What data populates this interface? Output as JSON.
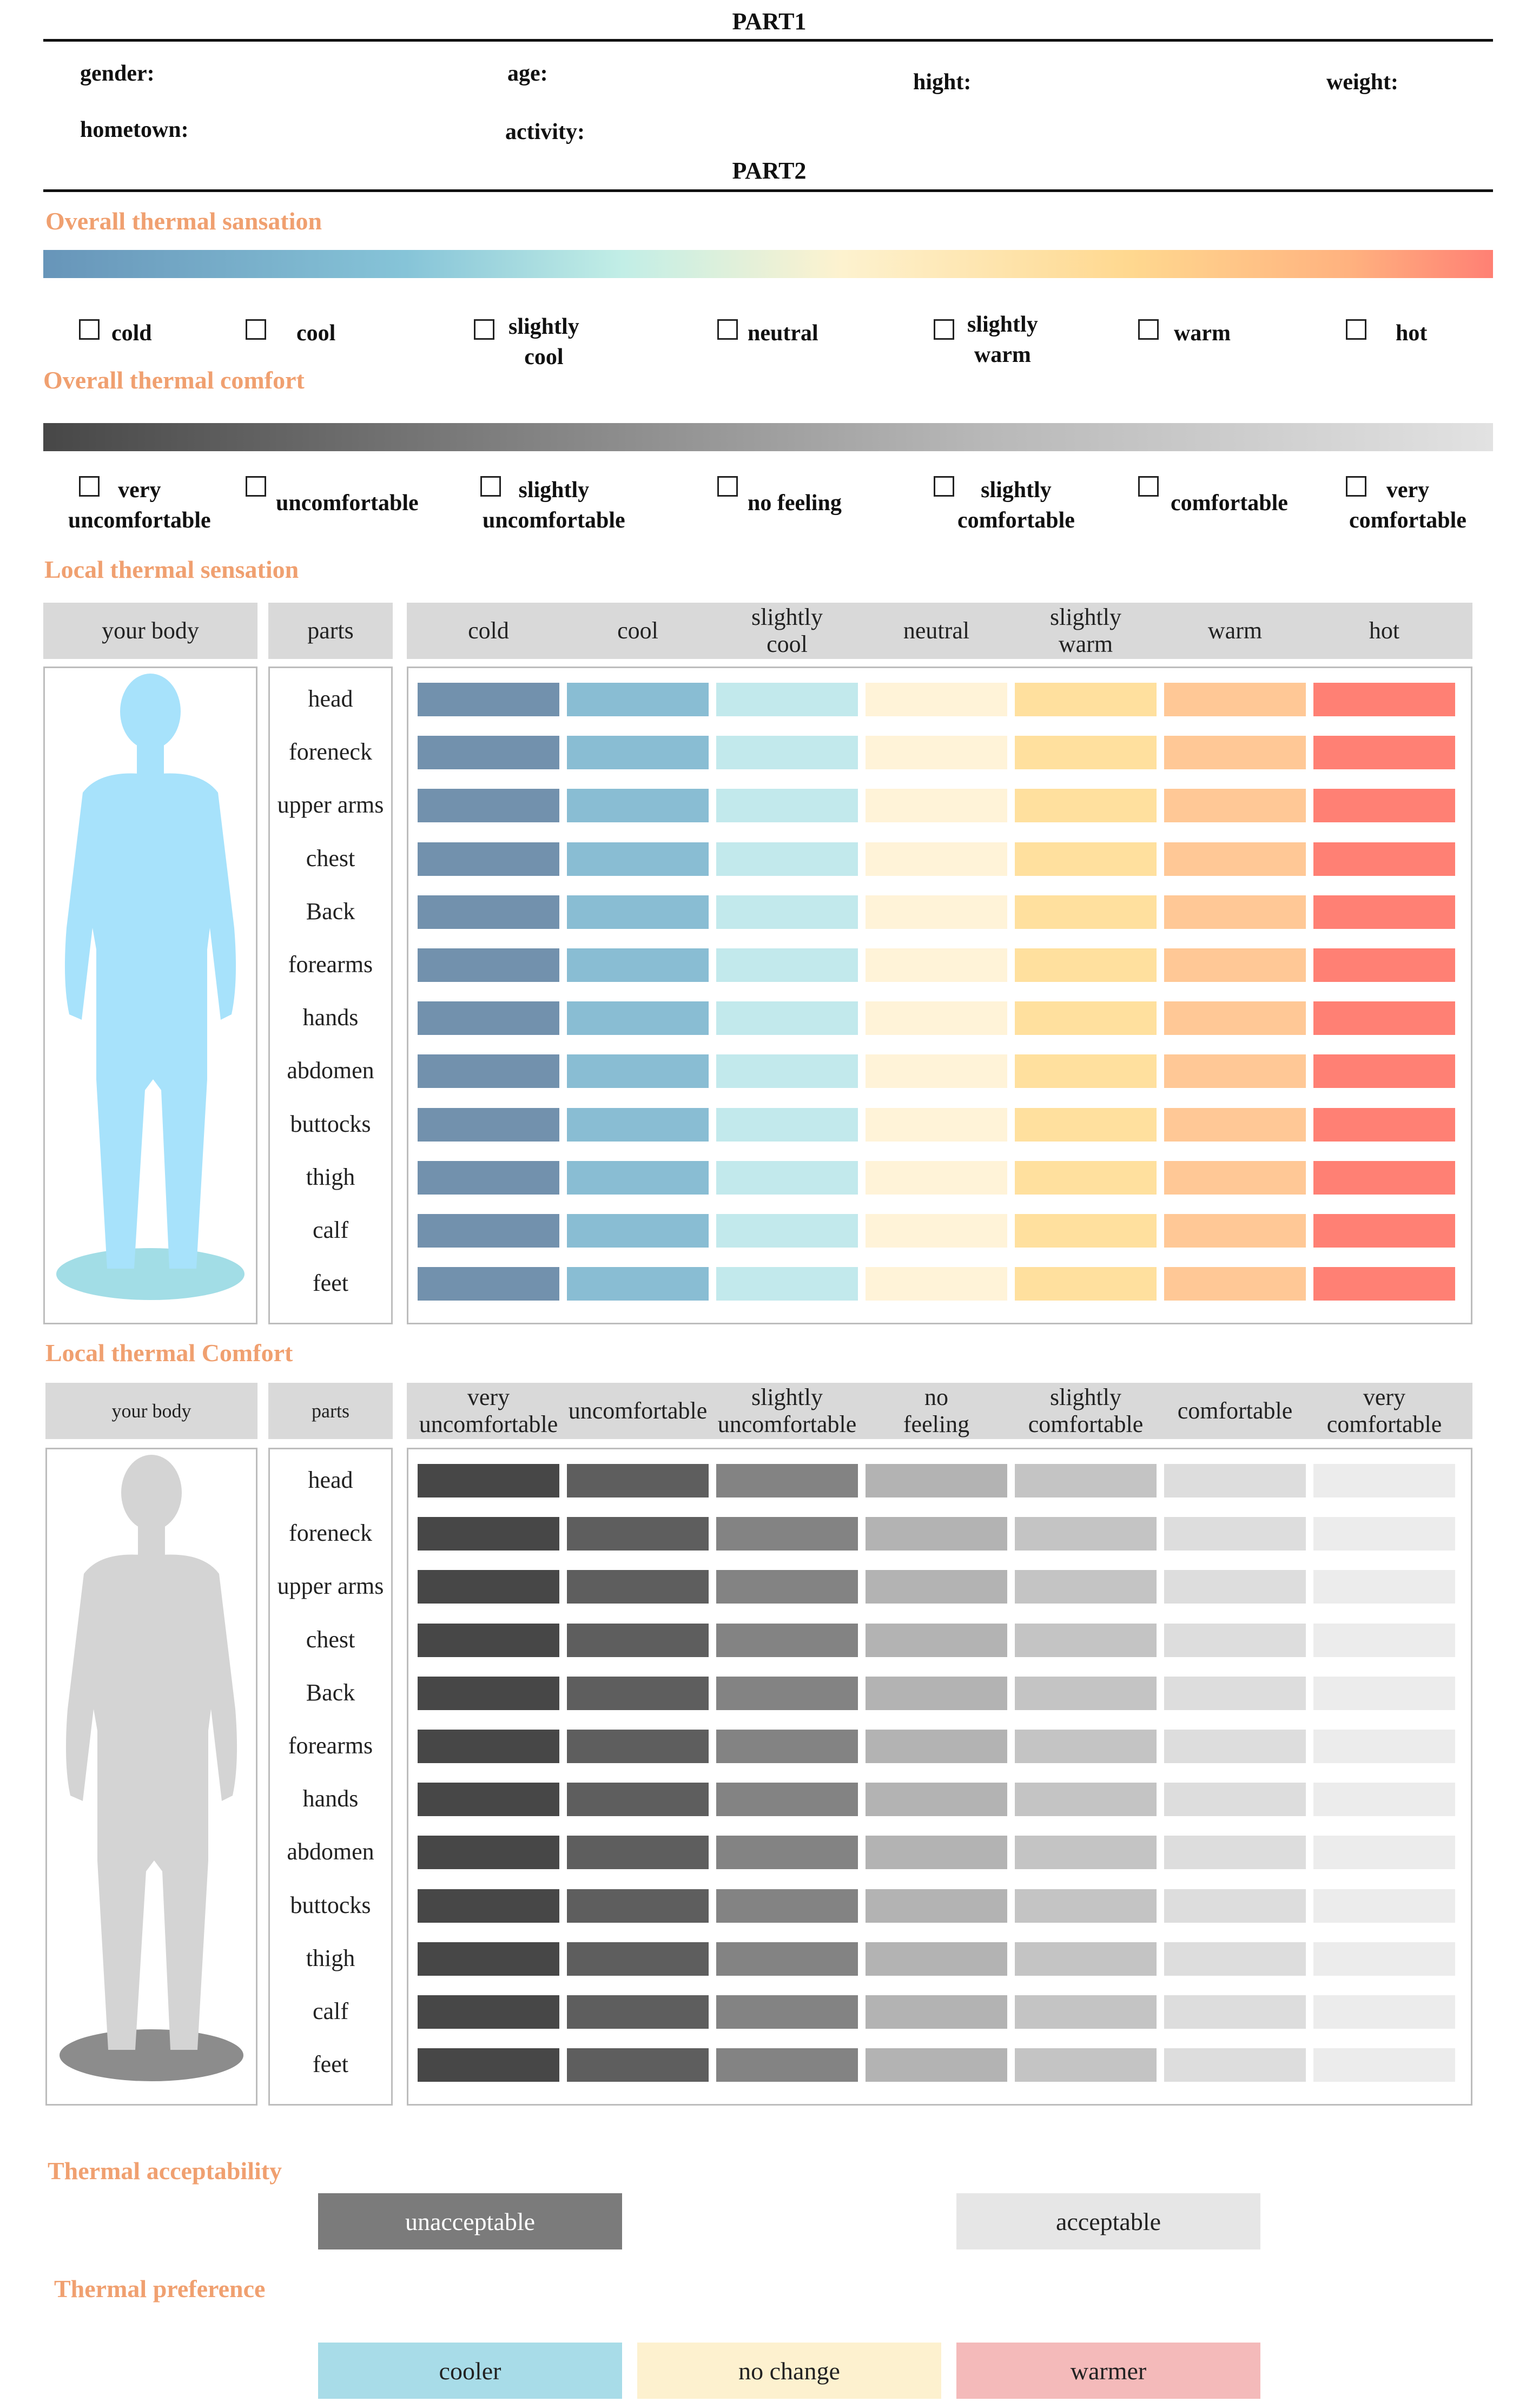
{
  "part1": {
    "title": "PART1",
    "fields": {
      "gender": "gender:",
      "age": "age:",
      "hight": "hight:",
      "weight": "weight:",
      "hometown": "hometown:",
      "activity": "activity:"
    }
  },
  "part2": {
    "title": "PART2"
  },
  "overall_sensation": {
    "title": "Overall thermal sansation",
    "options": [
      "cold",
      "cool",
      "slightly\ncool",
      "neutral",
      "slightly\nwarm",
      "warm",
      "hot"
    ]
  },
  "overall_comfort": {
    "title": "Overall thermal comfort",
    "options": [
      "very\nuncomfortable",
      "uncomfortable",
      "slightly\nuncomfortable",
      "no feeling",
      "slightly\ncomfortable",
      "comfortable",
      "very\ncomfortable"
    ]
  },
  "local_sensation": {
    "title": "Local thermal sensation",
    "header_body": "your body",
    "header_parts": "parts",
    "scale": [
      "cold",
      "cool",
      "slightly\ncool",
      "neutral",
      "slightly\nwarm",
      "warm",
      "hot"
    ],
    "parts": [
      "head",
      "foreneck",
      "upper arms",
      "chest",
      "Back",
      "forearms",
      "hands",
      "abdomen",
      "buttocks",
      "thigh",
      "calf",
      "feet"
    ],
    "colors": [
      "#7291ad",
      "#89bdd3",
      "#c2e9ec",
      "#fff3d8",
      "#ffe09e",
      "#ffc896",
      "#ff8074"
    ]
  },
  "local_comfort": {
    "title": "Local thermal Comfort",
    "header_body": "your body",
    "header_parts": "parts",
    "scale": [
      "very\nuncomfortable",
      "uncomfortable",
      "slightly\nuncomfortable",
      "no\nfeeling",
      "slightly\ncomfortable",
      "comfortable",
      "very\ncomfortable"
    ],
    "parts": [
      "head",
      "foreneck",
      "upper arms",
      "chest",
      "Back",
      "forearms",
      "hands",
      "abdomen",
      "buttocks",
      "thigh",
      "calf",
      "feet"
    ],
    "colors": [
      "#474747",
      "#5e5e5e",
      "#838383",
      "#b3b3b3",
      "#c4c4c4",
      "#dddddd",
      "#ececec"
    ]
  },
  "acceptability": {
    "title": "Thermal acceptability",
    "options": [
      "unacceptable",
      "acceptable"
    ],
    "colors": [
      "#7b7b7b",
      "#e6e6e6"
    ]
  },
  "preference": {
    "title": "Thermal preference",
    "options": [
      "cooler",
      "no change",
      "warmer"
    ],
    "colors": [
      "#a8dce8",
      "#fdf1cf",
      "#f4baba"
    ]
  },
  "icons": {
    "body_sensation": "human-body-silhouette-blue",
    "body_comfort": "human-body-silhouette-gray",
    "checkbox": "checkbox-empty"
  }
}
